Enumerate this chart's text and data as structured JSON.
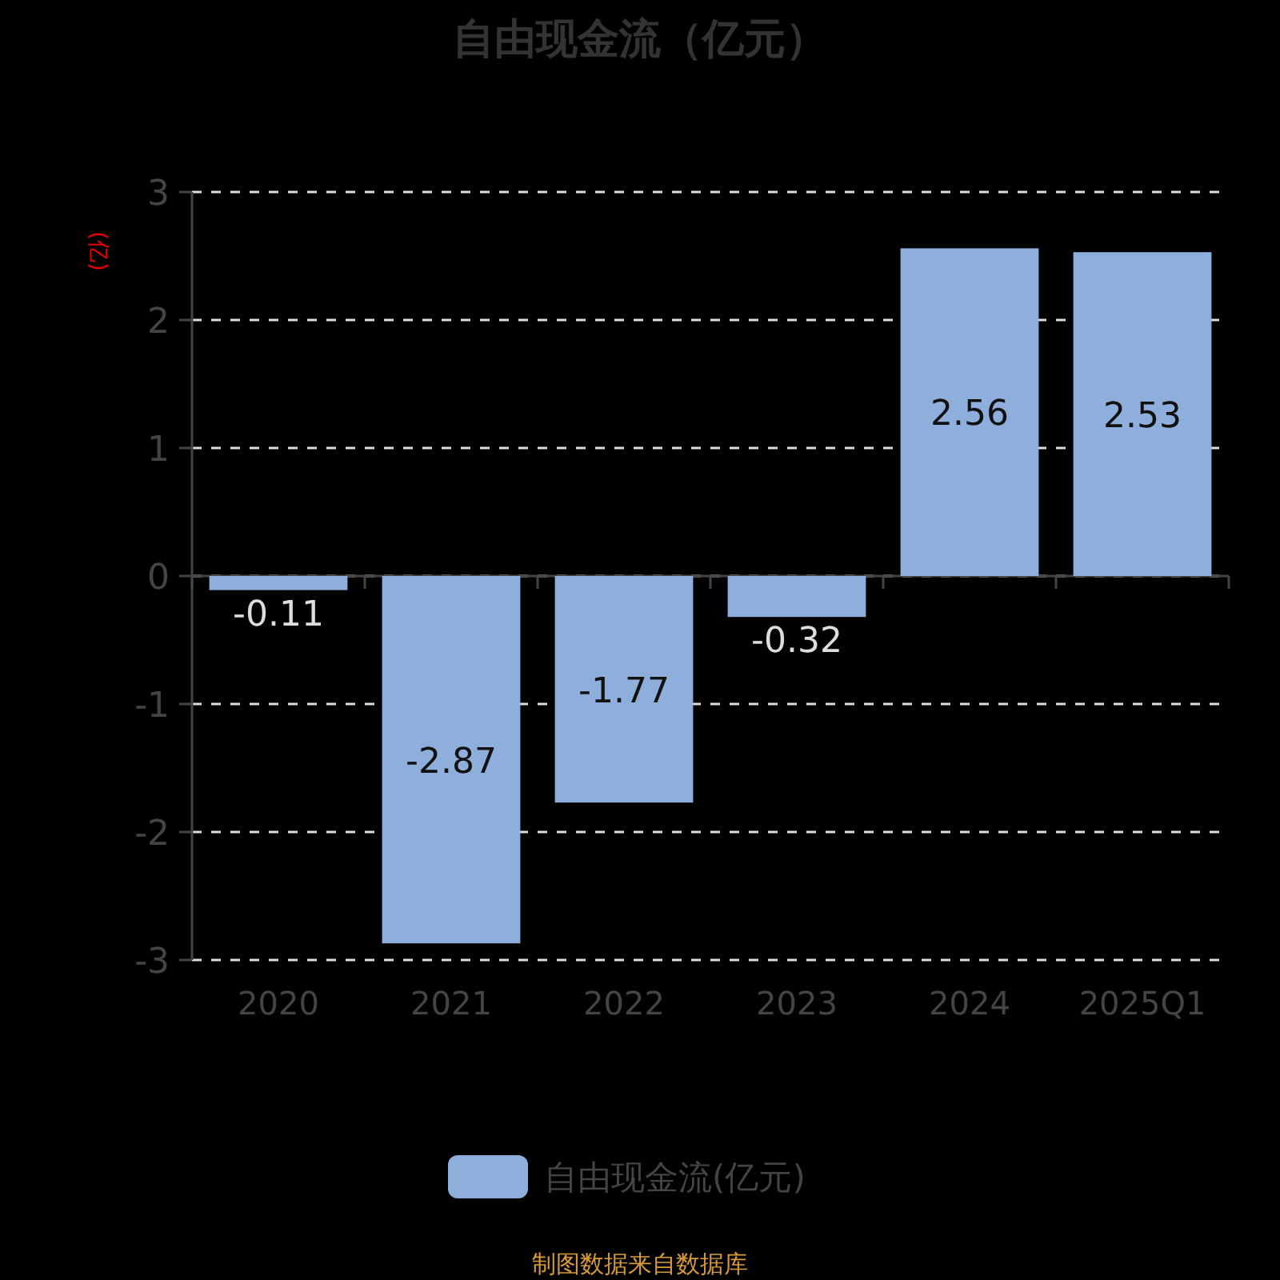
{
  "chart_data": {
    "type": "bar",
    "title": "自由现金流（亿元）",
    "ylabel": "(亿)",
    "categories": [
      "2020",
      "2021",
      "2022",
      "2023",
      "2024",
      "2025Q1"
    ],
    "series": [
      {
        "name": "自由现金流(亿元)",
        "color": "#8eaedb",
        "values": [
          -0.11,
          -2.87,
          -1.77,
          -0.32,
          2.56,
          2.53
        ]
      }
    ],
    "ylim": [
      -3,
      3
    ],
    "yticks": [
      -3,
      -2,
      -1,
      0,
      1,
      2,
      3
    ],
    "grid": "y",
    "legend": "bottom",
    "data_labels": true,
    "annotations": [
      "制图数据来自数据库"
    ]
  }
}
